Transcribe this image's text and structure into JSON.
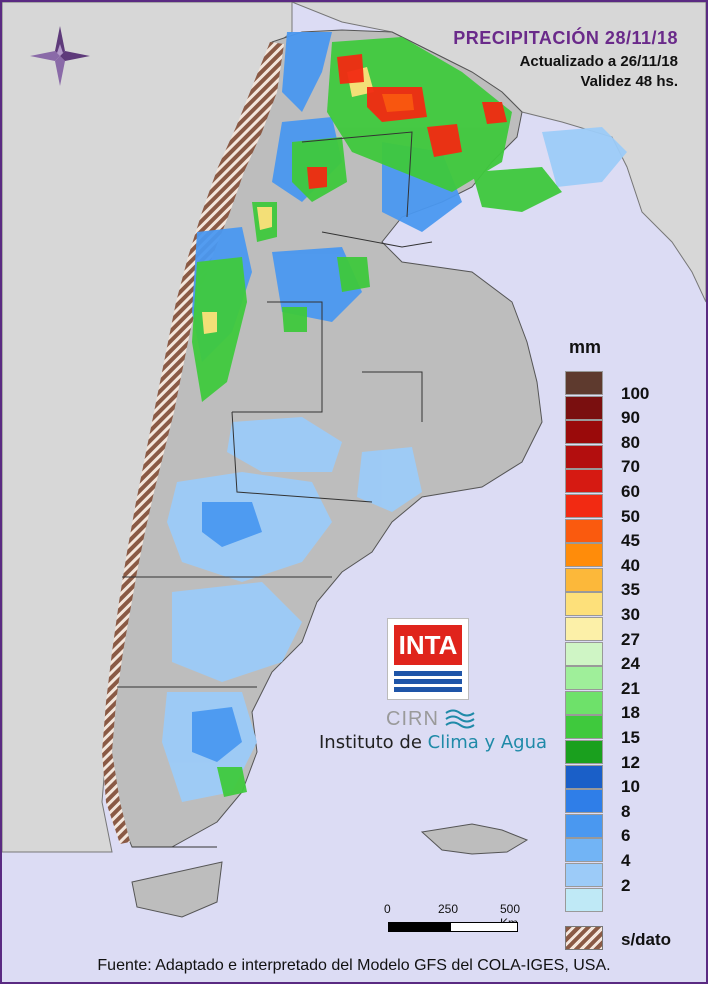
{
  "title": {
    "main": "PRECIPITACIÓN 28/11/18",
    "updated": "Actualizado a 26/11/18",
    "validity": "Validez 48 hs."
  },
  "legend": {
    "unit": "mm",
    "top_color": "#5e3a2e",
    "items": [
      {
        "label": "100",
        "color": "#7a0f0f"
      },
      {
        "label": "90",
        "color": "#9a0a0a"
      },
      {
        "label": "80",
        "color": "#b30e0e"
      },
      {
        "label": "70",
        "color": "#d61a12"
      },
      {
        "label": "60",
        "color": "#f22a12"
      },
      {
        "label": "50",
        "color": "#fa5a0e"
      },
      {
        "label": "45",
        "color": "#ff8c0a"
      },
      {
        "label": "40",
        "color": "#fcb83a"
      },
      {
        "label": "35",
        "color": "#fde07a"
      },
      {
        "label": "30",
        "color": "#fcf0a8"
      },
      {
        "label": "27",
        "color": "#cff5c5"
      },
      {
        "label": "24",
        "color": "#9fef9a"
      },
      {
        "label": "21",
        "color": "#6ee16a"
      },
      {
        "label": "18",
        "color": "#3fc93d"
      },
      {
        "label": "15",
        "color": "#1aa01e"
      },
      {
        "label": "12",
        "color": "#1a5fc8"
      },
      {
        "label": "10",
        "color": "#2f7ee8"
      },
      {
        "label": "8",
        "color": "#4a98f0"
      },
      {
        "label": "6",
        "color": "#72b4f5"
      },
      {
        "label": "4",
        "color": "#9ccbf8"
      },
      {
        "label": "2",
        "color": "#bfe9f6"
      }
    ],
    "no_data_label": "s/dato"
  },
  "scale": {
    "label_0": "0",
    "label_250": "250",
    "label_500": "500 Km"
  },
  "logo": {
    "inta": "INTA",
    "cirn": "CIRN",
    "institute_prefix": "Instituto de ",
    "institute_accent": "Clima y Agua"
  },
  "source": "Fuente: Adaptado e interpretado del Modelo GFS del COLA-IGES, USA.",
  "colors": {
    "background": "#e4e4f6",
    "ocean": "#dcdcf4",
    "land_neighbor": "#d7d7d7",
    "relief": "#b9b9b9",
    "title": "#6a2a8a",
    "frame": "#5a2a82"
  },
  "icons": {
    "compass": "compass-rose-icon",
    "waves": "waves-icon"
  }
}
